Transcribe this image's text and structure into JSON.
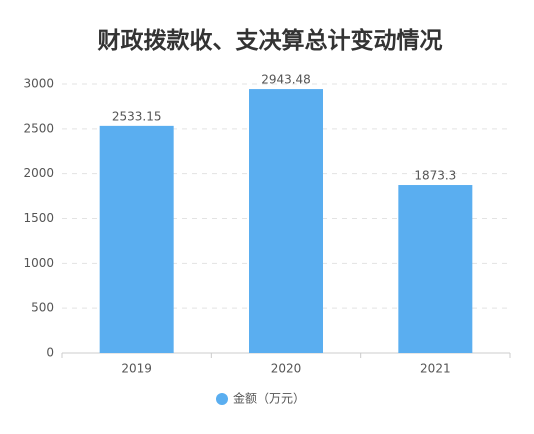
{
  "chart_data": {
    "type": "bar",
    "title": "财政拨款收、支决算总计变动情况",
    "categories": [
      "2019",
      "2020",
      "2021"
    ],
    "series": [
      {
        "name": "金额（万元）",
        "color": "#5aaef0",
        "values": [
          2533.15,
          2943.48,
          1873.3
        ]
      }
    ],
    "ylim": [
      0,
      3000
    ],
    "yticks": [
      0,
      500,
      1000,
      1500,
      2000,
      2500,
      3000
    ],
    "grid": true,
    "legend": "bottom"
  }
}
